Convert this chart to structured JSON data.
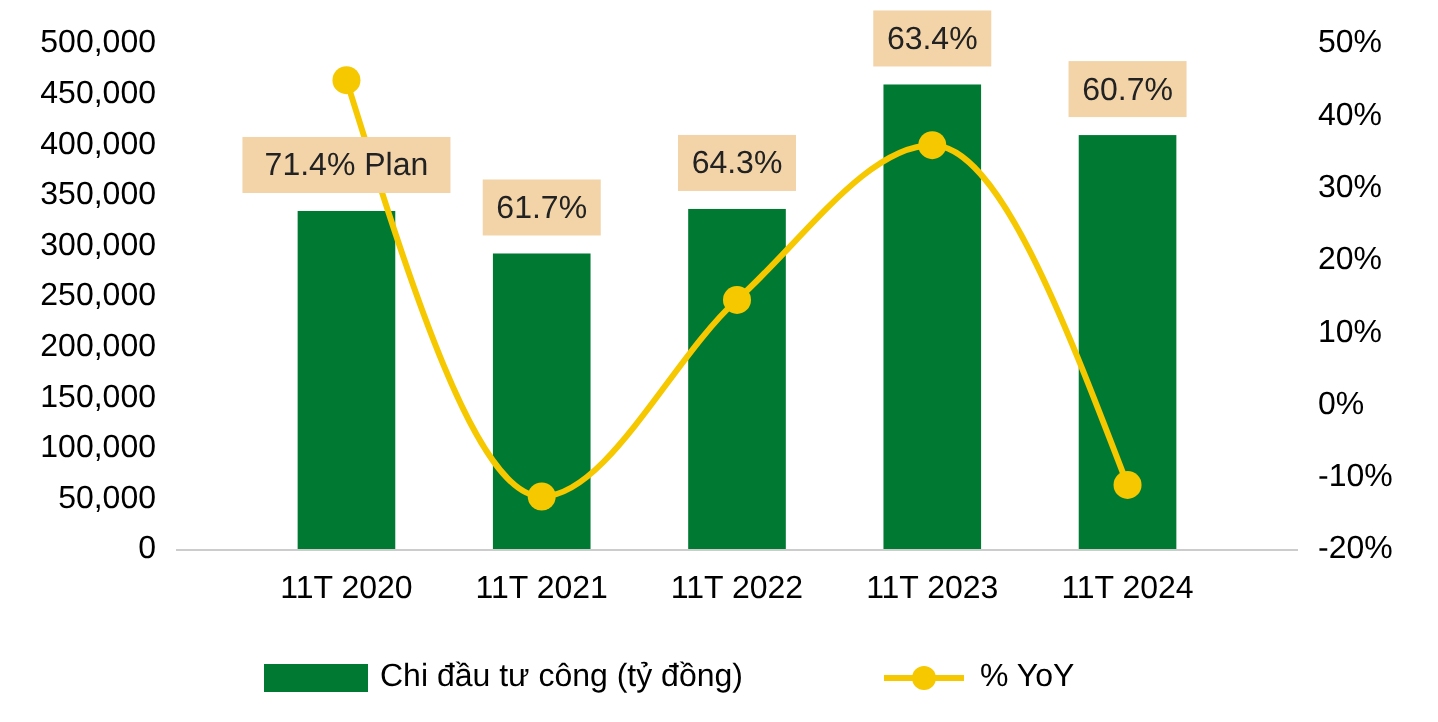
{
  "chart_data": {
    "type": "bar",
    "categories": [
      "11T 2020",
      "11T 2021",
      "11T 2022",
      "11T 2023",
      "11T 2024"
    ],
    "series": [
      {
        "name": "Chi đầu tư công (tỷ đồng)",
        "color": "#007a33",
        "values": [
          335000,
          293000,
          337000,
          460000,
          410000
        ]
      },
      {
        "name": "% YoY",
        "type": "line",
        "axis": "y2",
        "color": "#f5c800",
        "values": [
          45,
          -12.6,
          14.6,
          36,
          -11
        ],
        "marker": "circle"
      }
    ],
    "ylim": [
      0,
      500000
    ],
    "yticks": [
      {
        "value": 0,
        "label": "0"
      },
      {
        "value": 50000,
        "label": "50,000"
      },
      {
        "value": 100000,
        "label": "100,000"
      },
      {
        "value": 150000,
        "label": "150,000"
      },
      {
        "value": 200000,
        "label": "200,000"
      },
      {
        "value": 250000,
        "label": "250,000"
      },
      {
        "value": 300000,
        "label": "300,000"
      },
      {
        "value": 350000,
        "label": "350,000"
      },
      {
        "value": 400000,
        "label": "400,000"
      },
      {
        "value": 450000,
        "label": "450,000"
      },
      {
        "value": 500000,
        "label": "500,000"
      }
    ],
    "y2lim": [
      -20,
      50
    ],
    "y2ticks": [
      {
        "value": -20,
        "label": "-20%"
      },
      {
        "value": -10,
        "label": "-10%"
      },
      {
        "value": 0,
        "label": "0%"
      },
      {
        "value": 10,
        "label": "10%"
      },
      {
        "value": 20,
        "label": "20%"
      },
      {
        "value": 30,
        "label": "30%"
      },
      {
        "value": 40,
        "label": "40%"
      },
      {
        "value": 50,
        "label": "50%"
      }
    ],
    "annotations": [
      {
        "text": "71.4% Plan",
        "x": "11T 2020",
        "y": 335000
      },
      {
        "text": "61.7%",
        "x": "11T 2021",
        "y": 293000
      },
      {
        "text": "64.3%",
        "x": "11T 2022",
        "y": 337000
      },
      {
        "text": "63.4%",
        "x": "11T 2023",
        "y": 460000
      },
      {
        "text": "60.7%",
        "x": "11T 2024",
        "y": 410000
      }
    ],
    "legend": "bottom",
    "grid": false
  }
}
